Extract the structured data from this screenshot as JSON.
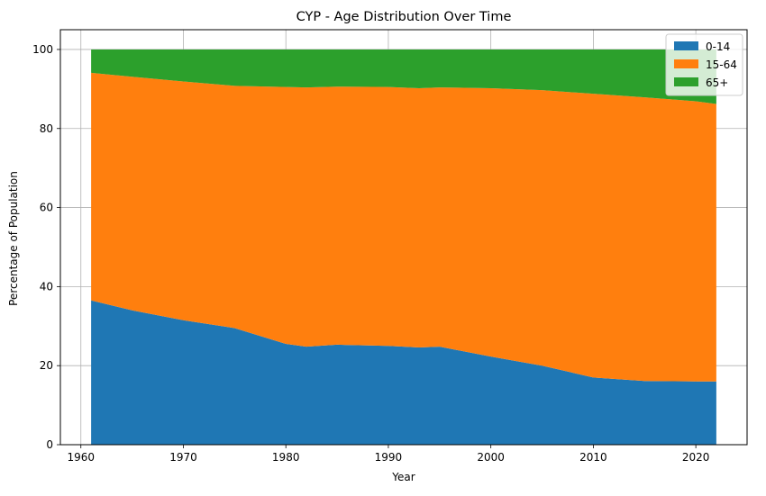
{
  "chart_data": {
    "type": "area",
    "stacked": true,
    "title": "CYP - Age Distribution Over Time",
    "xlabel": "Year",
    "ylabel": "Percentage of Population",
    "xlim": [
      1958,
      2025
    ],
    "ylim": [
      0,
      105
    ],
    "xticks": [
      1960,
      1970,
      1980,
      1990,
      2000,
      2010,
      2020
    ],
    "yticks": [
      0,
      20,
      40,
      60,
      80,
      100
    ],
    "grid": true,
    "legend_position": "top-right",
    "x": [
      1961,
      1965,
      1970,
      1975,
      1980,
      1982,
      1985,
      1990,
      1993,
      1995,
      2000,
      2005,
      2010,
      2015,
      2020,
      2022
    ],
    "series": [
      {
        "name": "0-14",
        "color": "#1f77b4",
        "values": [
          36.5,
          34.0,
          31.5,
          29.5,
          25.5,
          24.8,
          25.3,
          25.0,
          24.6,
          24.8,
          22.3,
          20.0,
          17.0,
          16.1,
          16.0,
          16.0
        ]
      },
      {
        "name": "15-64",
        "color": "#ff7f0e",
        "values": [
          57.6,
          59.1,
          60.4,
          61.3,
          65.0,
          65.6,
          65.3,
          65.5,
          65.6,
          65.6,
          67.9,
          69.7,
          71.8,
          71.8,
          70.9,
          70.2
        ]
      },
      {
        "name": "65+",
        "color": "#2ca02c",
        "values": [
          5.9,
          6.9,
          8.1,
          9.2,
          9.5,
          9.6,
          9.4,
          9.5,
          9.8,
          9.6,
          9.8,
          10.3,
          11.2,
          12.1,
          13.1,
          13.8
        ]
      }
    ]
  }
}
